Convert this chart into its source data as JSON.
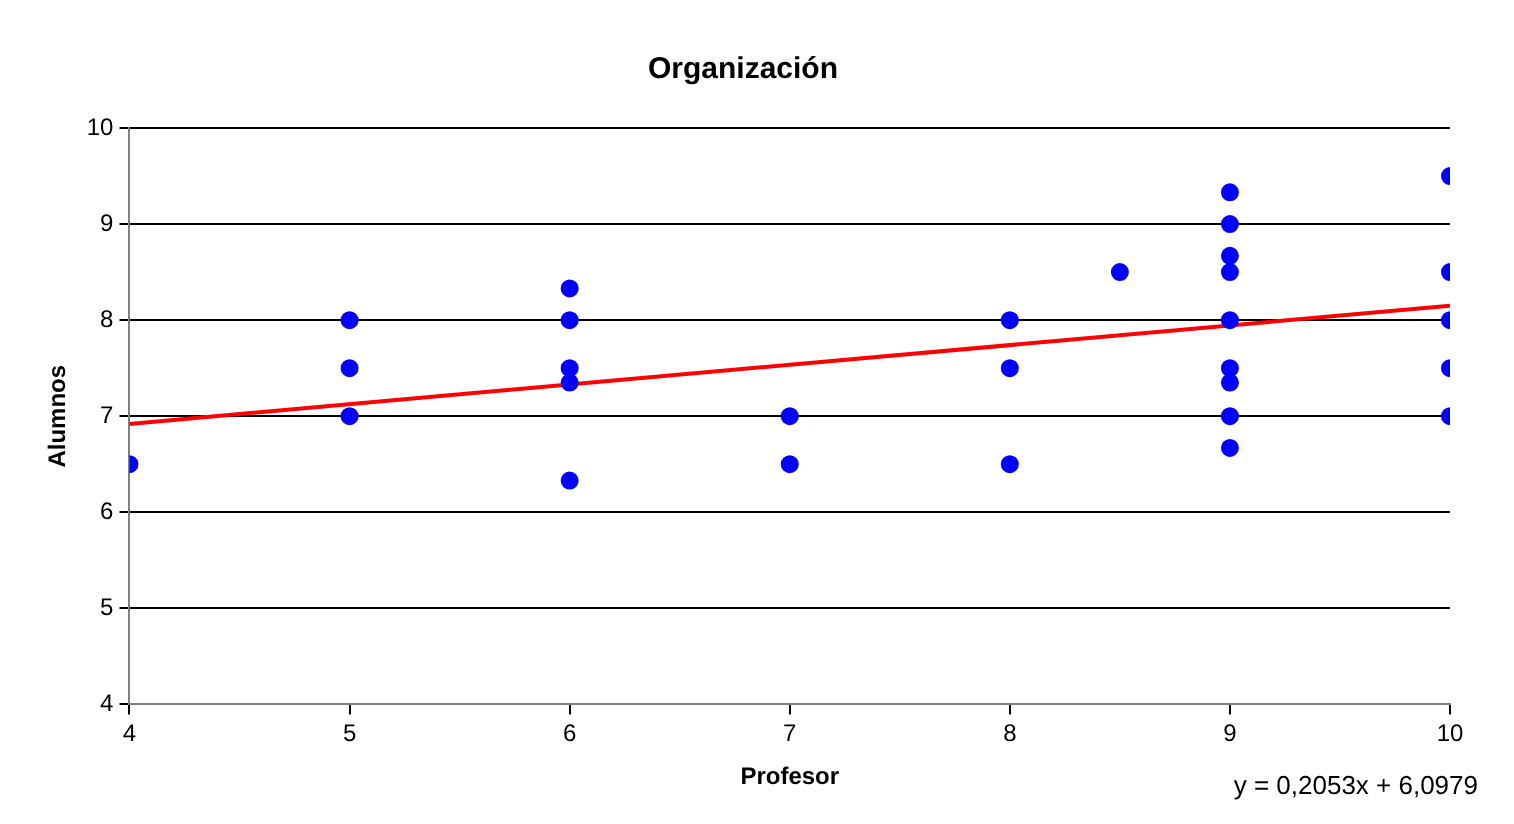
{
  "chart_data": {
    "type": "scatter",
    "title": "Organización",
    "xlabel": "Profesor",
    "ylabel": "Alumnos",
    "xlim": [
      4,
      10
    ],
    "xticks": [
      4,
      5,
      6,
      7,
      8,
      9,
      10
    ],
    "ylim": [
      4,
      10
    ],
    "yticks": [
      4,
      5,
      6,
      7,
      8,
      9,
      10
    ],
    "grid": "y",
    "legend": false,
    "series": [
      {
        "type": "scatter",
        "marker": "circle",
        "color": "#0000ff",
        "x": [
          4,
          5,
          5,
          5,
          6,
          6,
          6,
          6,
          6,
          7,
          7,
          8,
          8,
          8,
          8.5,
          9,
          9,
          9,
          9,
          9,
          9,
          9,
          9,
          9,
          10,
          10,
          10,
          10,
          10
        ],
        "values": [
          6.5,
          8,
          7.5,
          7,
          8.33,
          8,
          7.5,
          7.35,
          6.33,
          7,
          6.5,
          8,
          7.5,
          6.5,
          8.5,
          9.33,
          9,
          8.67,
          8.5,
          8,
          7.5,
          7.35,
          7,
          6.67,
          9.5,
          8.5,
          8,
          7.5,
          7
        ]
      },
      {
        "type": "line",
        "color": "#ff0000",
        "x": [
          4,
          10
        ],
        "values": [
          6.92,
          8.15
        ]
      }
    ],
    "annotations": [
      "y = 0,2053x + 6,0979"
    ]
  }
}
